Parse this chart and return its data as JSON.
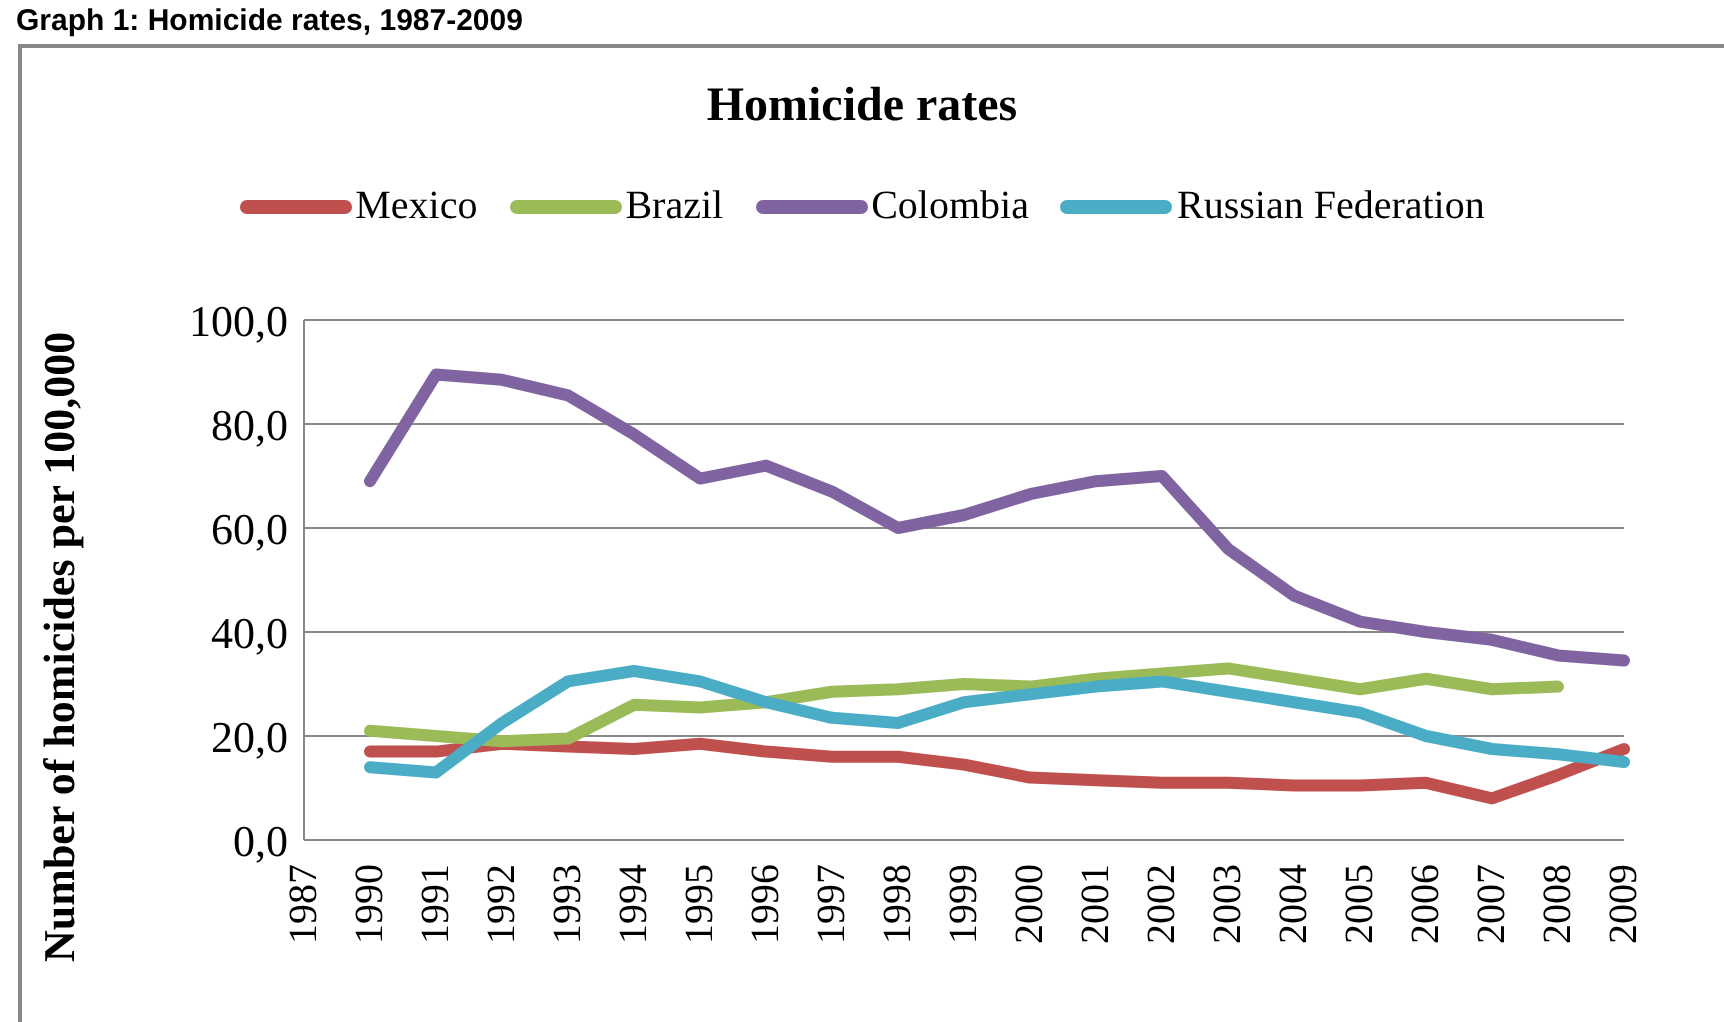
{
  "chart_data": {
    "type": "line",
    "title": "Homicide rates",
    "ylabel": "Number of homicides per 100,000",
    "annotations": [
      "Graph 1: Homicide rates, 1987-2009"
    ],
    "categories": [
      "1987",
      "1990",
      "1991",
      "1992",
      "1993",
      "1994",
      "1995",
      "1996",
      "1997",
      "1998",
      "1999",
      "2000",
      "2001",
      "2002",
      "2003",
      "2004",
      "2005",
      "2006",
      "2007",
      "2008",
      "2009"
    ],
    "series": [
      {
        "name": "Mexico",
        "color": "#c0504d",
        "values": [
          null,
          17,
          17,
          18.5,
          18,
          17.5,
          18.5,
          17,
          16,
          16,
          14.5,
          12,
          11.5,
          11,
          11,
          10.5,
          10.5,
          11,
          8,
          12.5,
          17.5
        ]
      },
      {
        "name": "Brazil",
        "color": "#9bbb59",
        "values": [
          null,
          21,
          20,
          19,
          19.5,
          26,
          25.5,
          26.5,
          28.5,
          29,
          30,
          29.5,
          31,
          32,
          33,
          31,
          29,
          31,
          29,
          29.5,
          null
        ]
      },
      {
        "name": "Colombia",
        "color": "#8064a2",
        "values": [
          null,
          69,
          89.5,
          88.5,
          85.5,
          78,
          69.5,
          72,
          67,
          60,
          62.5,
          66.5,
          69,
          70,
          56,
          47,
          42,
          40,
          38.5,
          35.5,
          34.5
        ]
      },
      {
        "name": "Russian Federation",
        "color": "#4bacc6",
        "values": [
          null,
          14,
          13,
          22.5,
          30.5,
          32.5,
          30.5,
          26.5,
          23.5,
          22.5,
          26.5,
          28,
          29.5,
          30.5,
          28.5,
          26.5,
          24.5,
          20,
          17.5,
          16.5,
          15
        ]
      }
    ],
    "ylim": [
      0,
      100
    ],
    "yticks": [
      {
        "value": 0,
        "label": "0,0"
      },
      {
        "value": 20,
        "label": "20,0"
      },
      {
        "value": 40,
        "label": "40,0"
      },
      {
        "value": 60,
        "label": "60,0"
      },
      {
        "value": 80,
        "label": "80,0"
      },
      {
        "value": 100,
        "label": "100,0"
      }
    ],
    "grid": "y",
    "legend": "top",
    "marker": "none",
    "line_style": "solid"
  }
}
